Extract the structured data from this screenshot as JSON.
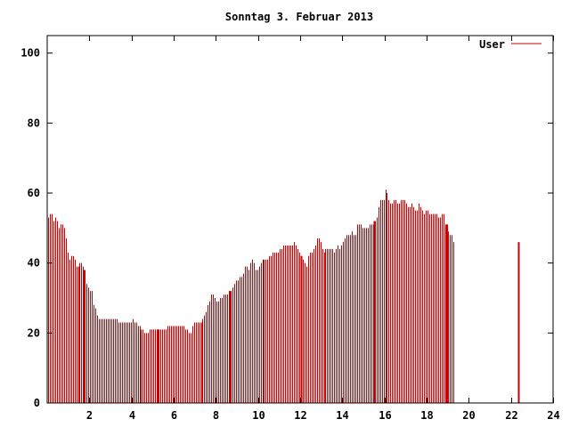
{
  "chart_data": {
    "type": "bar",
    "title": "Sonntag 3. Februar 2013",
    "xlabel": "",
    "ylabel": "",
    "xlim": [
      0,
      24
    ],
    "ylim": [
      0,
      105
    ],
    "x_ticks": [
      2,
      4,
      6,
      8,
      10,
      12,
      14,
      16,
      18,
      20,
      22,
      24
    ],
    "x_tick_labels": [
      "2",
      "4",
      "6",
      "8",
      "10",
      "12",
      "14",
      "16",
      "18",
      "20",
      "22",
      "24"
    ],
    "y_ticks": [
      0,
      20,
      40,
      60,
      80,
      100
    ],
    "y_tick_labels": [
      "0",
      "20",
      "40",
      "60",
      "80",
      "100"
    ],
    "grid": false,
    "legend_position": "top-right",
    "series": [
      {
        "name": "User",
        "color": "#cc0000",
        "interval_hours": 0.0833,
        "values": [
          53,
          54,
          54,
          52,
          53,
          52,
          50,
          51,
          51,
          50,
          47,
          43,
          41,
          42,
          42,
          41,
          39,
          39,
          40,
          40,
          39,
          38,
          34,
          33,
          32,
          32,
          28,
          27,
          25,
          24,
          24,
          24,
          24,
          24,
          24,
          24,
          24,
          24,
          24,
          24,
          23,
          23,
          23,
          23,
          23,
          23,
          23,
          23,
          24,
          23,
          23,
          22,
          22,
          21,
          21,
          20,
          20,
          20,
          21,
          21,
          21,
          21,
          21,
          21,
          21,
          21,
          21,
          21,
          22,
          22,
          22,
          22,
          22,
          22,
          22,
          22,
          22,
          22,
          21,
          21,
          20,
          20,
          22,
          23,
          23,
          23,
          23,
          23,
          24,
          25,
          26,
          28,
          29,
          31,
          31,
          30,
          29,
          29,
          30,
          30,
          31,
          31,
          31,
          32,
          32,
          33,
          34,
          35,
          35,
          36,
          36,
          37,
          39,
          39,
          38,
          40,
          41,
          40,
          38,
          38,
          39,
          40,
          41,
          41,
          41,
          41,
          42,
          42,
          43,
          43,
          43,
          43,
          44,
          44,
          45,
          45,
          45,
          45,
          45,
          45,
          46,
          45,
          44,
          43,
          42,
          41,
          40,
          39,
          42,
          43,
          43,
          44,
          45,
          47,
          47,
          46,
          44,
          43,
          44,
          44,
          44,
          44,
          44,
          43,
          44,
          45,
          44,
          45,
          46,
          47,
          48,
          48,
          48,
          49,
          48,
          48,
          51,
          51,
          51,
          50,
          50,
          50,
          50,
          51,
          51,
          51,
          52,
          53,
          56,
          58,
          58,
          58,
          61,
          60,
          58,
          57,
          57,
          58,
          58,
          57,
          57,
          58,
          58,
          58,
          57,
          56,
          56,
          57,
          56,
          55,
          55,
          57,
          56,
          55,
          54,
          55,
          55,
          54,
          54,
          54,
          54,
          54,
          53,
          53,
          54,
          54,
          51,
          51,
          49,
          48,
          48,
          46
        ]
      }
    ],
    "heavy_bar_times": [
      1.75,
      5.25,
      8.65,
      12.05,
      15.5,
      18.95,
      22.35
    ]
  }
}
